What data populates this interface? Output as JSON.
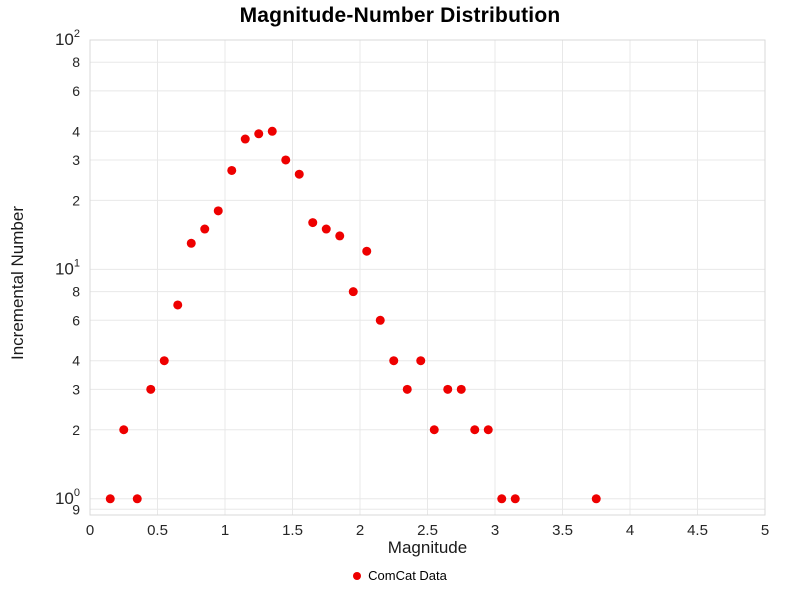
{
  "chart_data": {
    "type": "scatter",
    "title": "Magnitude-Number Distribution",
    "xlabel": "Magnitude",
    "ylabel": "Incremental Number",
    "legend_label": "ComCat Data",
    "x_range": [
      0,
      5
    ],
    "y_scale": "log",
    "y_range": [
      0.85,
      100
    ],
    "grid": true,
    "legend_position": "bottom-center",
    "colors": {
      "point": "#ee0000",
      "grid": "#e8e8e8",
      "border": "#d9d9d9",
      "tick": "#262626"
    },
    "x_ticks": [
      {
        "v": 0,
        "t": "0"
      },
      {
        "v": 0.5,
        "t": "0.5"
      },
      {
        "v": 1,
        "t": "1"
      },
      {
        "v": 1.5,
        "t": "1.5"
      },
      {
        "v": 2,
        "t": "2"
      },
      {
        "v": 2.5,
        "t": "2.5"
      },
      {
        "v": 3,
        "t": "3"
      },
      {
        "v": 3.5,
        "t": "3.5"
      },
      {
        "v": 4,
        "t": "4"
      },
      {
        "v": 4.5,
        "t": "4.5"
      },
      {
        "v": 5,
        "t": "5"
      }
    ],
    "y_ticks": [
      {
        "v": 100,
        "base": "10",
        "exp": "2"
      },
      {
        "v": 80,
        "t": "8"
      },
      {
        "v": 60,
        "t": "6"
      },
      {
        "v": 40,
        "t": "4"
      },
      {
        "v": 30,
        "t": "3"
      },
      {
        "v": 20,
        "t": "2"
      },
      {
        "v": 10,
        "base": "10",
        "exp": "1"
      },
      {
        "v": 8,
        "t": "8"
      },
      {
        "v": 6,
        "t": "6"
      },
      {
        "v": 4,
        "t": "4"
      },
      {
        "v": 3,
        "t": "3"
      },
      {
        "v": 2,
        "t": "2"
      },
      {
        "v": 1,
        "base": "10",
        "exp": "0"
      },
      {
        "v": 0.9,
        "t": "9"
      }
    ],
    "series": [
      {
        "name": "ComCat Data",
        "color": "#ee0000",
        "x": [
          0.15,
          0.25,
          0.35,
          0.45,
          0.55,
          0.65,
          0.75,
          0.85,
          0.95,
          1.05,
          1.15,
          1.25,
          1.35,
          1.45,
          1.55,
          1.65,
          1.75,
          1.85,
          1.95,
          2.05,
          2.15,
          2.25,
          2.35,
          2.45,
          2.55,
          2.65,
          2.75,
          2.85,
          2.95,
          3.05,
          3.15,
          3.75
        ],
        "y": [
          1,
          2,
          1,
          3,
          4,
          7,
          13,
          15,
          18,
          27,
          37,
          39,
          40,
          30,
          26,
          16,
          15,
          14,
          8,
          12,
          6,
          4,
          3,
          4,
          2,
          3,
          3,
          2,
          2,
          1,
          1,
          1
        ]
      }
    ]
  }
}
